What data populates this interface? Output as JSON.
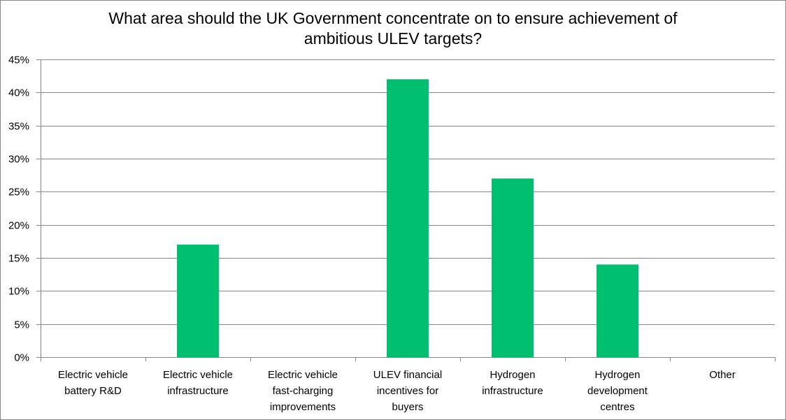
{
  "chart_data": {
    "type": "bar",
    "title": "What area should the UK Government concentrate on to ensure achievement of ambitious ULEV targets?",
    "title_lines": [
      "What area should the UK Government concentrate on to ensure achievement of",
      "ambitious ULEV targets?"
    ],
    "categories": [
      [
        "Electric vehicle",
        "battery R&D"
      ],
      [
        "Electric vehicle",
        "infrastructure"
      ],
      [
        "Electric vehicle",
        "fast-charging",
        "improvements"
      ],
      [
        "ULEV financial",
        "incentives for",
        "buyers"
      ],
      [
        "Hydrogen",
        "infrastructure"
      ],
      [
        "Hydrogen",
        "development",
        "centres"
      ],
      [
        "Other"
      ]
    ],
    "values": [
      0,
      17,
      0,
      42,
      27,
      14,
      0
    ],
    "ylim": [
      0,
      45
    ],
    "yticks": [
      0,
      5,
      10,
      15,
      20,
      25,
      30,
      35,
      40,
      45
    ],
    "ytick_labels": [
      "0%",
      "5%",
      "10%",
      "15%",
      "20%",
      "25%",
      "30%",
      "35%",
      "40%",
      "45%"
    ],
    "xlabel": "",
    "ylabel": "",
    "grid": true,
    "legend": "none",
    "bar_color": "#00BF6F",
    "grid_color": "#868686"
  }
}
